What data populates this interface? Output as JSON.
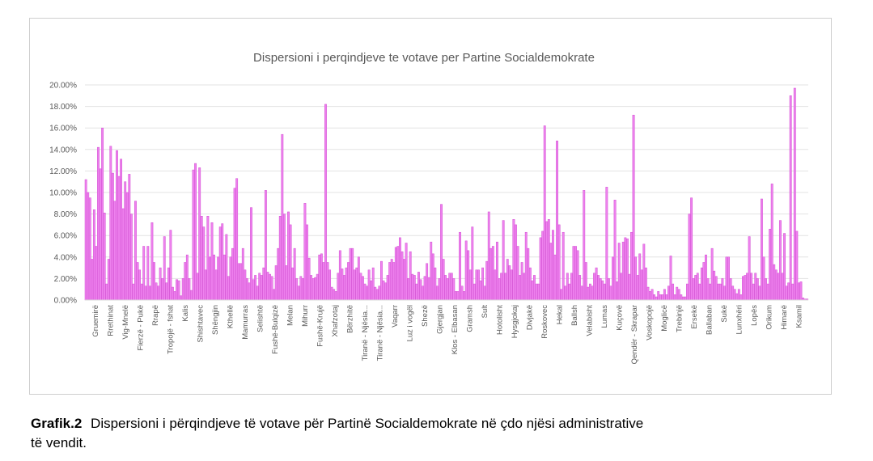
{
  "chart_data": {
    "type": "bar",
    "title": "Dispersioni i perqindjeve te votave per Partine Socialdemokrate",
    "xlabel": "",
    "ylabel": "",
    "ylim": [
      0,
      20
    ],
    "y_ticks": [
      "0.00%",
      "2.00%",
      "4.00%",
      "6.00%",
      "8.00%",
      "10.00%",
      "12.00%",
      "14.00%",
      "16.00%",
      "18.00%",
      "20.00%"
    ],
    "grid": true,
    "legend": "none",
    "bar_color": "#ee82ee",
    "bar_edge_color": "#d24fd2",
    "categories_shown": [
      "Gruemirë",
      "Rrethinat",
      "Vig-Mnelë",
      "Fierzë - Pukë",
      "Rrapë",
      "Tropojë - fshat",
      "Kalis",
      "Shishtavec",
      "Shëngjin",
      "Kthellë",
      "Mamurras",
      "Selishtë",
      "Fushë-Bulqizë",
      "Melan",
      "Mihurr",
      "Fushë-Krujë",
      "Xhafzotaj",
      "Bërzhitë",
      "Tiranë - Njësia...",
      "Tiranë - Njësia...",
      "Vaqarr",
      "Luz i vogël",
      "Shezë",
      "Gjergjan",
      "Klos - Elbasan",
      "Gramsh",
      "Sult",
      "Hotolisht",
      "Hysgjokaj",
      "Divjakë",
      "Roskovec",
      "Hekal",
      "Ballsh",
      "Velabisht",
      "Lumas",
      "Kuçovë",
      "Qendër - Skrapar",
      "Voskopojë",
      "Moglicë",
      "Trebinjë",
      "Ersekë",
      "Ballaban",
      "Sukë",
      "Lunxhëri",
      "Lopës",
      "Orikum",
      "Himarë",
      "Ksamil"
    ],
    "values": [
      11.2,
      10.0,
      9.5,
      3.8,
      8.4,
      5.0,
      14.2,
      12.2,
      16.0,
      8.1,
      1.5,
      3.8,
      14.3,
      11.8,
      9.2,
      13.9,
      11.5,
      13.1,
      8.5,
      11.0,
      10.0,
      11.7,
      8.0,
      1.5,
      9.2,
      3.5,
      2.8,
      1.5,
      5.0,
      1.3,
      5.0,
      1.3,
      7.2,
      3.5,
      1.6,
      1.3,
      3.0,
      2.0,
      5.9,
      1.6,
      3.0,
      6.5,
      1.2,
      0.8,
      1.9,
      1.8,
      0.4,
      2.0,
      3.5,
      4.2,
      2.0,
      0.9,
      12.1,
      12.7,
      2.5,
      12.3,
      7.8,
      6.8,
      2.8,
      7.8,
      4.0,
      7.2,
      4.2,
      2.8,
      4.0,
      6.8,
      7.1,
      4.2,
      6.1,
      2.2,
      4.0,
      4.8,
      10.4,
      11.3,
      3.4,
      3.4,
      4.8,
      2.8,
      2.0,
      1.6,
      8.6,
      1.9,
      2.3,
      1.3,
      2.5,
      2.3,
      3.0,
      10.2,
      2.6,
      2.4,
      2.2,
      1.0,
      3.2,
      4.8,
      7.8,
      15.4,
      8.0,
      3.2,
      8.2,
      7.0,
      3.0,
      4.8,
      2.0,
      1.3,
      2.2,
      2.0,
      9.0,
      7.0,
      3.9,
      2.3,
      2.0,
      2.1,
      2.4,
      4.2,
      4.3,
      3.5,
      18.2,
      3.5,
      2.8,
      1.2,
      1.0,
      0.8,
      2.5,
      4.6,
      2.9,
      2.3,
      3.0,
      3.5,
      4.8,
      4.8,
      2.8,
      3.0,
      4.0,
      2.5,
      2.2,
      1.5,
      1.3,
      2.8,
      1.8,
      3.0,
      1.2,
      1.0,
      1.3,
      3.6,
      1.8,
      1.6,
      2.3,
      3.5,
      3.8,
      3.5,
      4.9,
      5.0,
      5.8,
      4.5,
      3.8,
      5.3,
      2.0,
      4.5,
      2.4,
      2.3,
      1.5,
      2.6,
      1.9,
      1.3,
      2.2,
      3.4,
      2.1,
      5.4,
      4.3,
      3.0,
      1.3,
      2.0,
      8.9,
      3.8,
      2.3,
      2.0,
      2.5,
      2.5,
      2.0,
      0.8,
      0.8,
      6.3,
      1.3,
      0.8,
      5.5,
      4.6,
      2.8,
      6.8,
      1.5,
      2.8,
      2.8,
      1.8,
      3.0,
      1.3,
      3.6,
      8.2,
      4.8,
      5.0,
      2.8,
      5.4,
      2.0,
      2.5,
      7.4,
      2.5,
      3.8,
      3.2,
      2.8,
      7.5,
      7.0,
      5.0,
      2.3,
      3.5,
      2.5,
      6.3,
      4.8,
      3.0,
      1.8,
      2.3,
      1.5,
      1.5,
      5.8,
      6.4,
      16.2,
      7.3,
      7.5,
      5.3,
      6.5,
      4.2,
      14.8,
      7.0,
      1.0,
      6.3,
      1.3,
      2.5,
      1.5,
      2.5,
      5.0,
      5.0,
      4.6,
      2.3,
      1.3,
      10.2,
      3.5,
      1.2,
      1.5,
      1.3,
      2.5,
      3.0,
      2.3,
      2.0,
      1.8,
      1.5,
      10.5,
      2.0,
      1.3,
      4.0,
      9.3,
      1.7,
      5.3,
      2.5,
      5.4,
      5.8,
      5.7,
      2.4,
      6.3,
      17.2,
      4.0,
      2.3,
      4.3,
      2.8,
      5.2,
      3.0,
      1.2,
      0.8,
      1.0,
      0.5,
      0.3,
      0.8,
      0.5,
      0.5,
      1.0,
      0.5,
      1.3,
      4.1,
      1.5,
      0.5,
      1.2,
      1.0,
      0.5,
      0.3,
      0.3,
      1.5,
      8.0,
      9.5,
      2.0,
      2.3,
      2.5,
      1.5,
      3.0,
      3.5,
      4.2,
      2.0,
      1.5,
      4.8,
      2.7,
      2.2,
      1.5,
      1.5,
      2.0,
      1.3,
      4.0,
      4.0,
      2.0,
      1.3,
      1.0,
      0.6,
      1.0,
      0.5,
      2.2,
      2.3,
      2.5,
      5.9,
      2.5,
      1.5,
      2.5,
      2.0,
      1.3,
      9.4,
      4.0,
      2.0,
      1.5,
      6.6,
      10.8,
      3.3,
      2.8,
      2.5,
      7.4,
      2.5,
      6.2,
      1.3,
      1.6,
      19.0,
      1.5,
      19.7,
      6.4,
      1.6,
      1.7,
      0.2,
      0.1,
      0.1
    ]
  },
  "caption": {
    "label": "Grafik.2",
    "text": "Dispersioni i përqindjeve të votave për Partinë Socialdemokrate në çdo njësi administrative",
    "text_line2": "të vendit."
  }
}
